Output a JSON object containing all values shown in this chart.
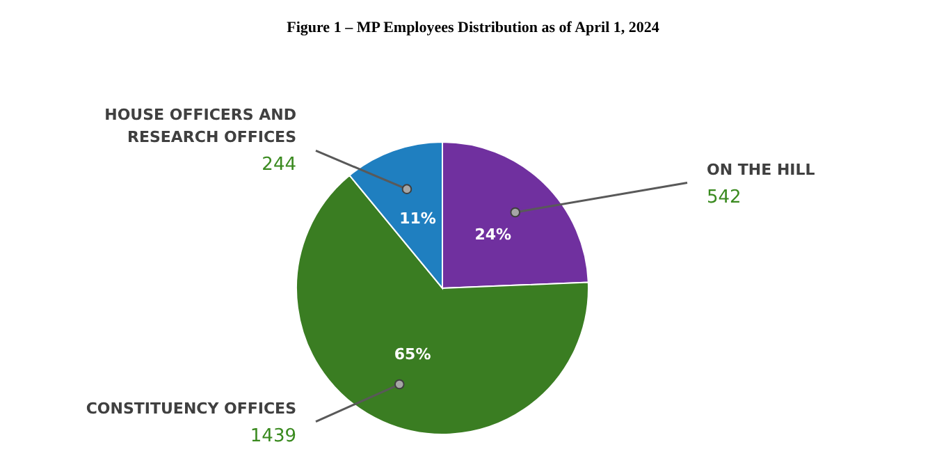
{
  "chart_data": {
    "type": "pie",
    "title": "Figure 1 – MP Employees Distribution as of April 1, 2024",
    "categories": [
      "ON THE HILL",
      "CONSTITUENCY OFFICES",
      "HOUSE OFFICERS AND RESEARCH OFFICES"
    ],
    "values": [
      542,
      1439,
      244
    ],
    "colors": [
      "#70309f",
      "#3a7d22",
      "#1f7fc0"
    ],
    "data_labels": true,
    "annotations": [
      {
        "text": "24%",
        "x": "ON THE HILL"
      },
      {
        "text": "65%",
        "x": "CONSTITUENCY OFFICES"
      },
      {
        "text": "11%",
        "x": "HOUSE OFFICERS AND RESEARCH OFFICES"
      }
    ]
  }
}
